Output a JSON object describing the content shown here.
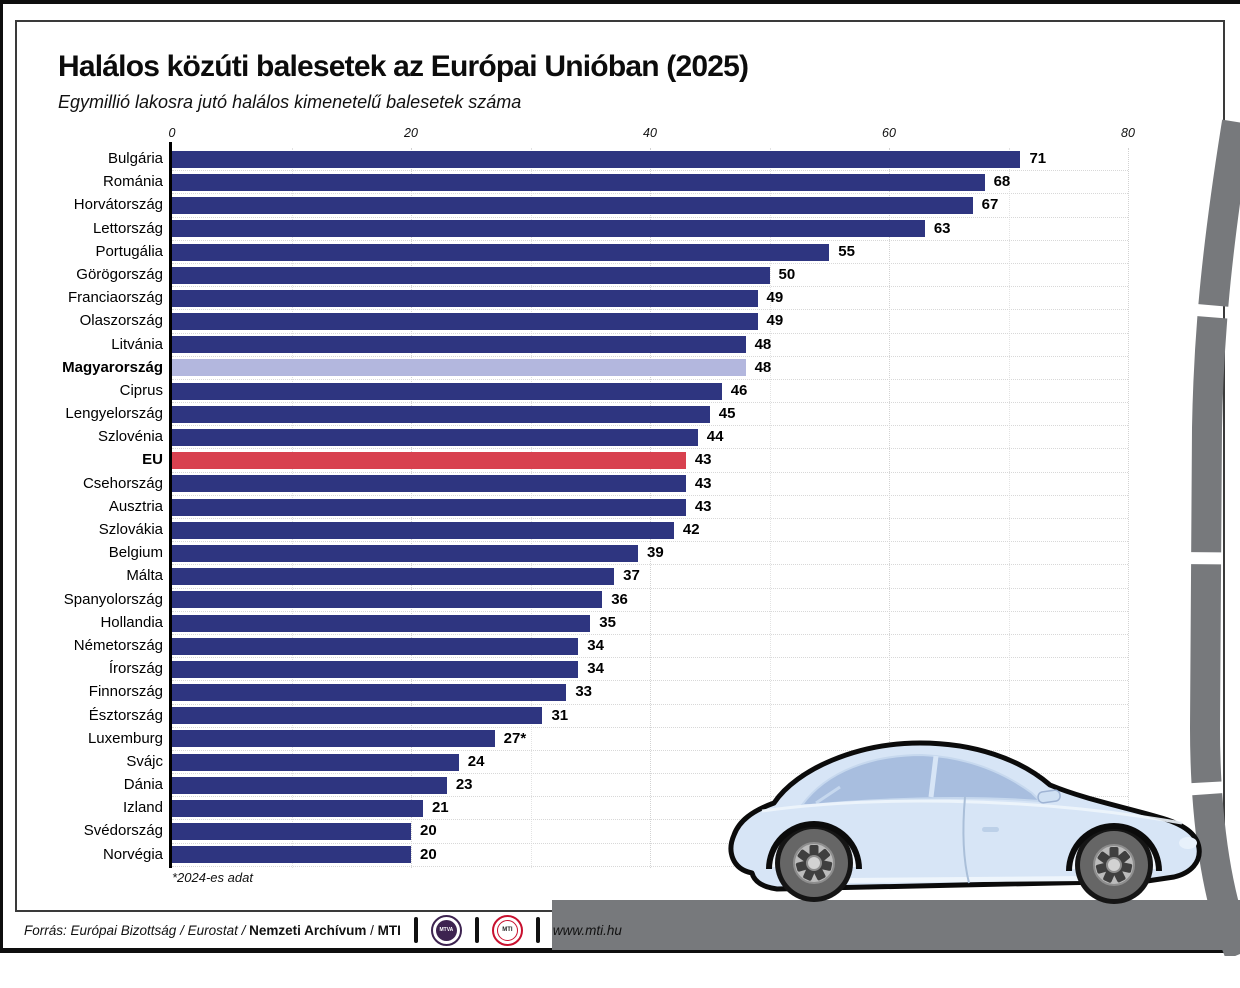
{
  "poster": {
    "title": "Halálos közúti balesetek az Európai Unióban (2025)",
    "subtitle": "Egymillió lakosra jutó halálos kimenetelű balesetek száma",
    "footnote": "*2024-es adat"
  },
  "chart_data": {
    "type": "bar",
    "orientation": "horizontal",
    "title": "Halálos közúti balesetek az Európai Unióban (2025)",
    "subtitle": "Egymillió lakosra jutó halálos kimenetelű balesetek száma",
    "xlim": [
      0,
      80
    ],
    "x_ticks": [
      0,
      20,
      40,
      60,
      80
    ],
    "grid": "vertical dotted, every 10 units; dotted row separators",
    "legend": "none",
    "categories": [
      "Bulgária",
      "Románia",
      "Horvátország",
      "Lettország",
      "Portugália",
      "Görögország",
      "Franciaország",
      "Olaszország",
      "Litvánia",
      "Magyarország",
      "Ciprus",
      "Lengyelország",
      "Szlovénia",
      "EU",
      "Csehország",
      "Ausztria",
      "Szlovákia",
      "Belgium",
      "Málta",
      "Spanyolország",
      "Hollandia",
      "Németország",
      "Írország",
      "Finnország",
      "Észtország",
      "Luxemburg",
      "Svájc",
      "Dánia",
      "Izland",
      "Svédország",
      "Norvégia"
    ],
    "values": [
      71,
      68,
      67,
      63,
      55,
      50,
      49,
      49,
      48,
      48,
      46,
      45,
      44,
      43,
      43,
      43,
      42,
      39,
      37,
      36,
      35,
      34,
      34,
      33,
      31,
      27,
      24,
      23,
      21,
      20,
      20
    ],
    "value_labels": [
      "71",
      "68",
      "67",
      "63",
      "55",
      "50",
      "49",
      "49",
      "48",
      "48",
      "46",
      "45",
      "44",
      "43",
      "43",
      "43",
      "42",
      "39",
      "37",
      "36",
      "35",
      "34",
      "34",
      "33",
      "31",
      "27*",
      "24",
      "23",
      "21",
      "20",
      "20"
    ],
    "bold_categories": [
      "Magyarország",
      "EU"
    ],
    "bar_color": "#2e3580",
    "highlights": {
      "Magyarország": "#b3b7de",
      "EU": "#d8414f"
    },
    "footnote": "*2024-es adat"
  },
  "footer": {
    "parts": [
      {
        "text": "Forrás: Európai Bizottság / Eurostat / ",
        "style": "italic"
      },
      {
        "text": "Nemzeti Archívum",
        "style": "bold"
      },
      {
        "text": " / ",
        "style": "normal"
      },
      {
        "text": "MTI",
        "style": "bold"
      }
    ],
    "logos": [
      {
        "id": "mtva",
        "label": "MTVA",
        "color": "#3d2350"
      },
      {
        "id": "mti",
        "label": "MTI",
        "color": "#c8102e"
      }
    ],
    "website": "www.mti.hu"
  },
  "colors": {
    "bar": "#2e3580",
    "highlight_hungary": "#b3b7de",
    "highlight_eu": "#d8414f",
    "road_gray": "#77797c",
    "car_body": "#d7e5f6",
    "frame": "#3a3a3a"
  }
}
